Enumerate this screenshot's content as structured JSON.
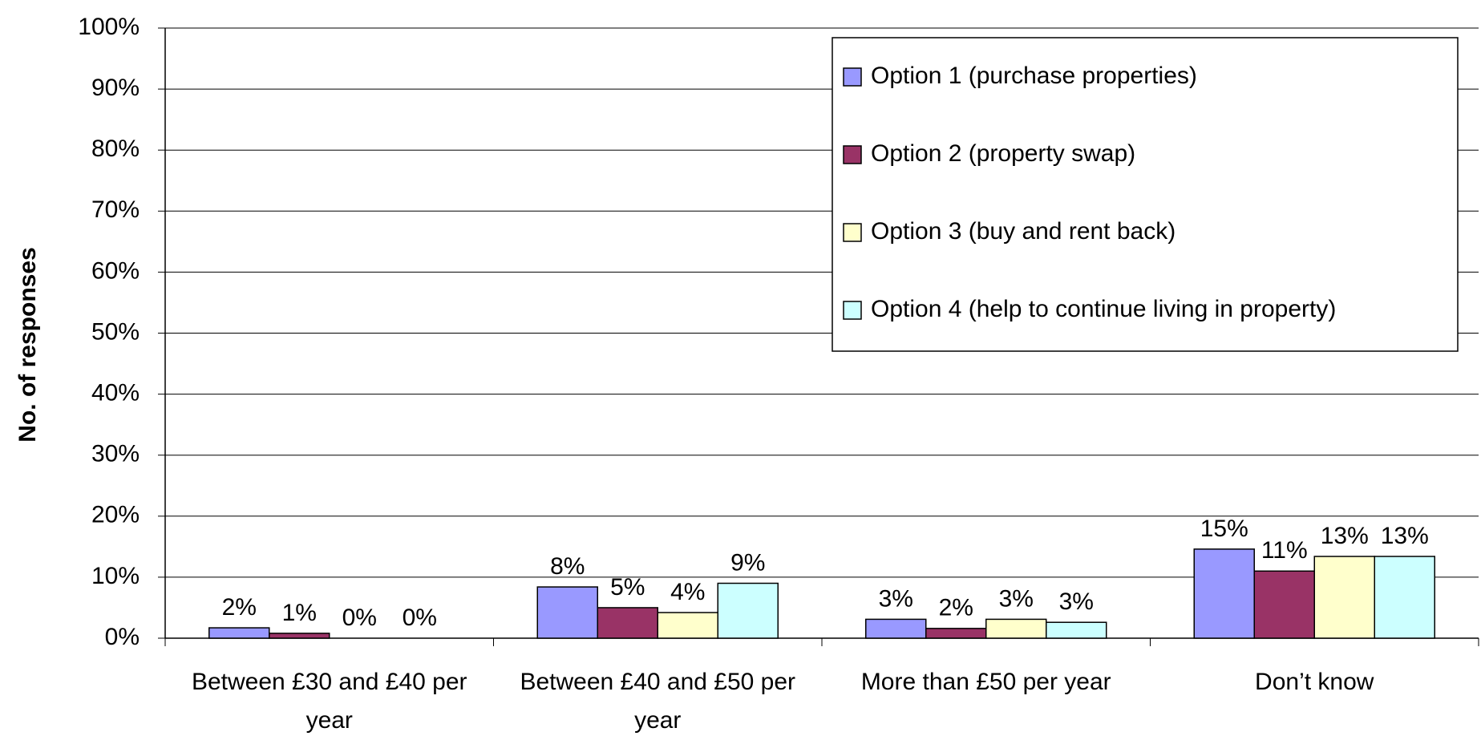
{
  "chart_data": {
    "type": "bar",
    "y_label": "No. of responses",
    "categories": [
      "Between £30 and £40 per year",
      "Between £40 and £50 per year",
      "More than £50 per year",
      "Don’t know"
    ],
    "series": [
      {
        "name": "Option 1 (purchase properties)",
        "color": "#9999ff",
        "values": [
          1.7,
          8.4,
          3.1,
          14.6
        ],
        "value_labels": [
          "2%",
          "8%",
          "3%",
          "15%"
        ]
      },
      {
        "name": "Option 2 (property swap)",
        "color": "#993366",
        "values": [
          0.8,
          5.0,
          1.6,
          11.0
        ],
        "value_labels": [
          "1%",
          "5%",
          "2%",
          "11%"
        ]
      },
      {
        "name": "Option 3 (buy and rent back)",
        "color": "#ffffcc",
        "values": [
          0,
          4.2,
          3.1,
          13.4
        ],
        "value_labels": [
          "0%",
          "4%",
          "3%",
          "13%"
        ]
      },
      {
        "name": "Option 4 (help to continue living in property)",
        "color": "#ccffff",
        "values": [
          0,
          9.0,
          2.6,
          13.4
        ],
        "value_labels": [
          "0%",
          "9%",
          "3%",
          "13%"
        ]
      }
    ],
    "ylim": [
      0,
      100
    ],
    "yticks": [
      {
        "value": 0,
        "label": "0%"
      },
      {
        "value": 10,
        "label": "10%"
      },
      {
        "value": 20,
        "label": "20%"
      },
      {
        "value": 30,
        "label": "30%"
      },
      {
        "value": 40,
        "label": "40%"
      },
      {
        "value": 50,
        "label": "50%"
      },
      {
        "value": 60,
        "label": "60%"
      },
      {
        "value": 70,
        "label": "70%"
      },
      {
        "value": 80,
        "label": "80%"
      },
      {
        "value": 90,
        "label": "90%"
      },
      {
        "value": 100,
        "label": "100%"
      }
    ],
    "grid": true,
    "legend": "upper right"
  }
}
